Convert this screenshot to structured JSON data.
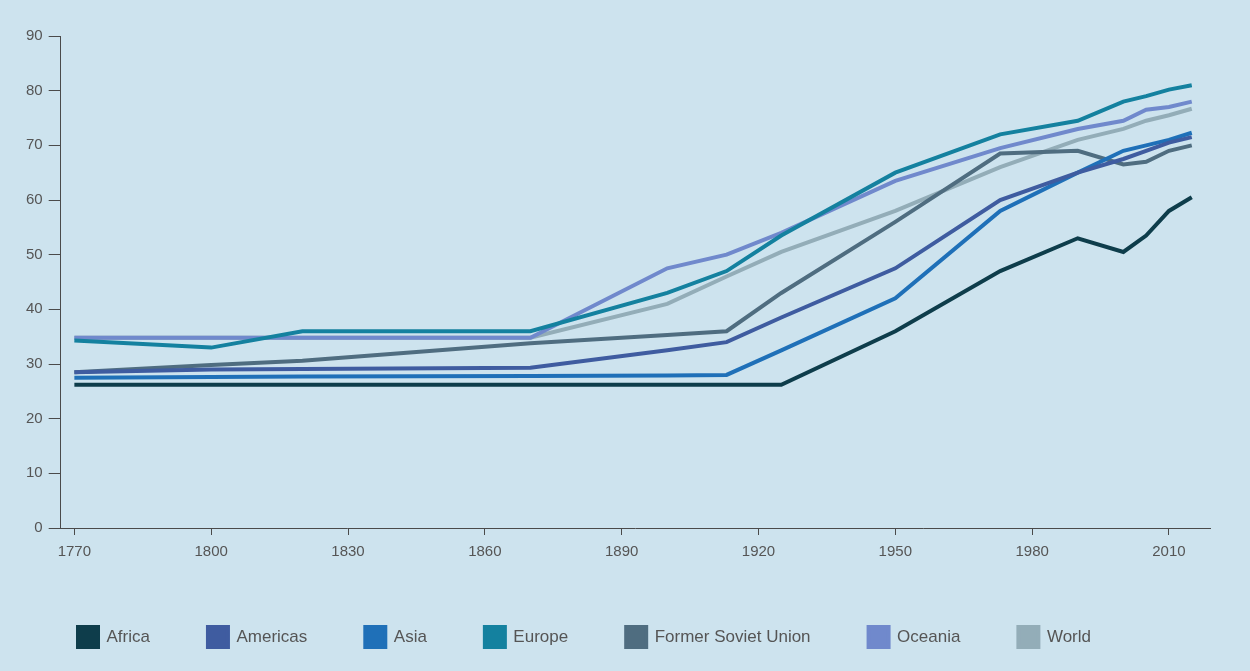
{
  "chart_data": {
    "type": "line",
    "x": [
      1770,
      1800,
      1820,
      1870,
      1900,
      1913,
      1925,
      1950,
      1973,
      1990,
      2000,
      2005,
      2010,
      2015
    ],
    "series": [
      {
        "name": "Africa",
        "color": "#0e3d4b",
        "values": [
          26.2,
          26.2,
          26.2,
          26.2,
          26.2,
          26.2,
          26.2,
          36,
          47,
          53,
          50.5,
          53.5,
          58,
          60.5
        ]
      },
      {
        "name": "Americas",
        "color": "#3f5ca0",
        "values": [
          28.5,
          29,
          29.1,
          29.3,
          32.5,
          34,
          38.5,
          47.5,
          60,
          65,
          67.5,
          69,
          70.5,
          71.5
        ]
      },
      {
        "name": "Asia",
        "color": "#1f70b8",
        "values": [
          27.5,
          27.6,
          27.7,
          27.8,
          27.9,
          28,
          32.5,
          42,
          58,
          65,
          69,
          70,
          71,
          72.3
        ]
      },
      {
        "name": "Europe",
        "color": "#14819f",
        "values": [
          34.3,
          33,
          36,
          36,
          43,
          47,
          53.5,
          65,
          72,
          74.5,
          78,
          79,
          80.2,
          81
        ]
      },
      {
        "name": "Former Soviet Union",
        "color": "#4f6d80",
        "values": [
          28.5,
          29.8,
          30.6,
          33.8,
          35.3,
          36,
          43,
          56,
          68.5,
          69,
          66.5,
          67,
          69,
          70
        ]
      },
      {
        "name": "Oceania",
        "color": "#7089cc",
        "values": [
          34.8,
          34.8,
          34.8,
          34.8,
          47.5,
          50,
          54,
          63.5,
          69.5,
          73,
          74.5,
          76.5,
          77,
          78
        ]
      },
      {
        "name": "World",
        "color": "#93adb8",
        "values": [
          34.8,
          34.8,
          34.8,
          34.8,
          41,
          46,
          50.5,
          58,
          66,
          71,
          73,
          74.5,
          75.5,
          76.7
        ]
      }
    ],
    "xlim": [
      1767,
      2019
    ],
    "xticks": [
      1770,
      1800,
      1830,
      1860,
      1890,
      1920,
      1950,
      1980,
      2010
    ],
    "ylim": [
      0,
      90
    ],
    "yticks": [
      0,
      10,
      20,
      30,
      40,
      50,
      60,
      70,
      80,
      90
    ],
    "grid": false,
    "legend": "bottom"
  }
}
